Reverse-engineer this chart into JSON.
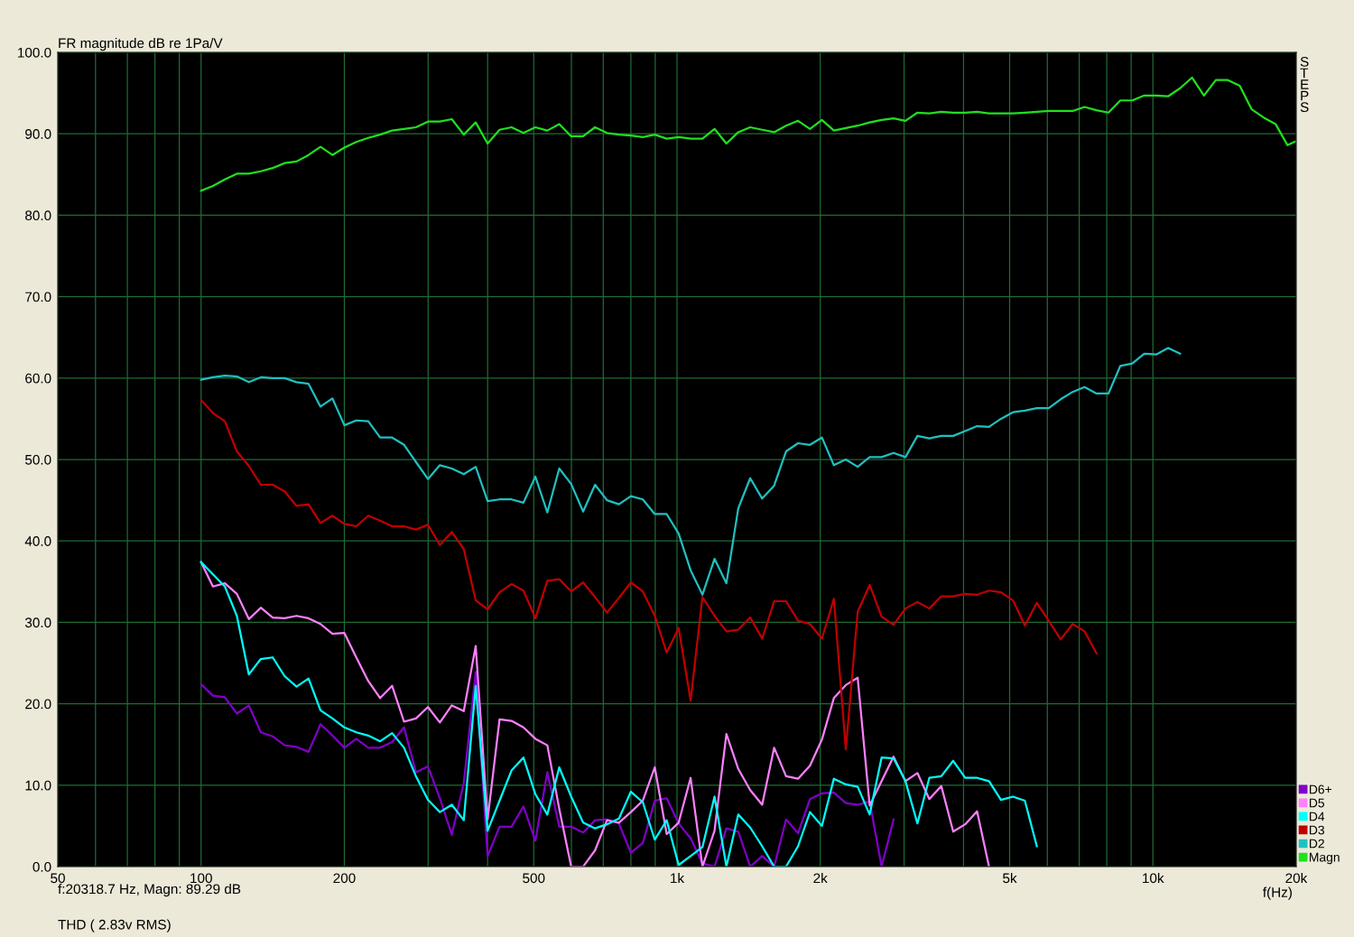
{
  "chart_data": {
    "type": "line",
    "ylabel": "FR magnitude dB re 1Pa/V",
    "xlabel": "f(Hz)",
    "annotations": [
      "STEPS",
      "f:20318.7 Hz, Magn: 89.29 dB",
      "THD ( 2.83v RMS)"
    ],
    "x": [
      100,
      105.9,
      112.2,
      118.9,
      126,
      133.5,
      141.4,
      149.8,
      158.7,
      168.2,
      178.2,
      188.8,
      200,
      211.9,
      224.5,
      237.8,
      252,
      267,
      282.8,
      299.7,
      317.5,
      336.4,
      356.4,
      377.6,
      400,
      423.8,
      449,
      475.7,
      504,
      534,
      565.7,
      599.3,
      635,
      672.7,
      712.7,
      755.1,
      800,
      847.6,
      898,
      951.4,
      1008,
      1068,
      1131,
      1199,
      1270,
      1345,
      1425,
      1510,
      1600,
      1695,
      1796,
      1903,
      2016,
      2136,
      2263,
      2397,
      2540,
      2691,
      2851,
      3020,
      3200,
      3390,
      3592,
      3805,
      4032,
      4271,
      4525,
      4795,
      5080,
      5382,
      5702,
      6041,
      6400,
      6781,
      7184,
      7611,
      8063,
      8543,
      9051,
      9589,
      10159,
      10763,
      11404,
      12082,
      12800,
      13561,
      14368,
      15222,
      16127,
      17086,
      18102,
      19178,
      20000
    ],
    "series": [
      {
        "name": "D6+",
        "color": "#8000c8",
        "values": [
          22.4,
          21.0,
          20.8,
          18.8,
          19.8,
          16.5,
          16.0,
          14.9,
          14.7,
          14.1,
          17.5,
          16.1,
          14.6,
          15.7,
          14.6,
          14.6,
          15.3,
          17.1,
          11.6,
          12.3,
          8.4,
          3.9,
          10.3,
          23.9,
          1.3,
          4.9,
          4.9,
          7.4,
          3.2,
          11.6,
          4.9,
          4.9,
          4.2,
          5.7,
          5.8,
          5.3,
          1.7,
          2.9,
          8.1,
          8.4,
          5.3,
          3.5,
          0.4,
          0,
          4.7,
          4.3,
          0,
          1.3,
          0,
          5.8,
          4.1,
          8.3,
          9.0,
          9.1,
          7.8,
          7.6,
          8.0,
          0,
          5.8,
          null,
          null,
          null,
          null,
          null,
          null,
          null,
          null,
          null,
          null,
          null,
          null,
          null,
          null,
          null,
          null,
          null,
          null,
          null,
          null,
          null,
          null,
          null,
          null,
          null,
          null,
          null,
          null,
          null,
          null,
          null,
          null,
          null,
          null
        ]
      },
      {
        "name": "D5",
        "color": "#ff80ff",
        "values": [
          37.4,
          34.4,
          34.8,
          33.5,
          30.4,
          31.8,
          30.6,
          30.5,
          30.8,
          30.5,
          29.8,
          28.6,
          28.7,
          25.7,
          22.8,
          20.7,
          22.2,
          17.8,
          18.2,
          19.6,
          17.7,
          19.8,
          19.1,
          27.1,
          5.8,
          18.1,
          17.9,
          17.1,
          15.7,
          14.9,
          7.1,
          0,
          0,
          2.0,
          5.7,
          5.4,
          6.7,
          8.1,
          12.2,
          4.0,
          5.4,
          10.9,
          0,
          4.4,
          16.3,
          12.0,
          9.4,
          7.6,
          14.6,
          11.1,
          10.8,
          12.4,
          15.6,
          20.7,
          22.3,
          23.2,
          7.5,
          10.5,
          13.5,
          10.5,
          11.5,
          8.3,
          9.9,
          4.3,
          5.2,
          6.8,
          0,
          null,
          null,
          null,
          null,
          null,
          null,
          null,
          null,
          null,
          null,
          null,
          null,
          null,
          null,
          null,
          null,
          null,
          null,
          null,
          null,
          null,
          null,
          null,
          null,
          null,
          null
        ]
      },
      {
        "name": "D4",
        "color": "#00ffff",
        "values": [
          37.4,
          35.9,
          34.4,
          30.8,
          23.6,
          25.5,
          25.7,
          23.4,
          22.1,
          23.1,
          19.2,
          18.2,
          17.1,
          16.5,
          16.1,
          15.4,
          16.4,
          14.6,
          11.1,
          8.2,
          6.7,
          7.6,
          5.7,
          22.2,
          4.4,
          8.1,
          11.8,
          13.4,
          8.9,
          6.4,
          12.2,
          8.6,
          5.4,
          4.7,
          5.2,
          5.9,
          9.2,
          7.9,
          3.3,
          5.7,
          0.2,
          1.3,
          2.4,
          8.6,
          0,
          6.4,
          4.8,
          2.5,
          0,
          0,
          2.5,
          6.7,
          5.0,
          10.8,
          10.1,
          9.8,
          6.4,
          13.4,
          13.3,
          10.5,
          5.3,
          10.9,
          11.1,
          13.0,
          10.9,
          10.9,
          10.5,
          8.2,
          8.6,
          8.1,
          2.5,
          null,
          null,
          null,
          null,
          null,
          null,
          null,
          null,
          null,
          null,
          null,
          null,
          null,
          null,
          null,
          null,
          null,
          null,
          null,
          null,
          null,
          null
        ]
      },
      {
        "name": "D3",
        "color": "#c00000",
        "values": [
          57.3,
          55.7,
          54.7,
          51.0,
          49.2,
          46.9,
          46.9,
          46.1,
          44.3,
          44.5,
          42.2,
          43.1,
          42.1,
          41.8,
          43.1,
          42.5,
          41.8,
          41.8,
          41.4,
          42.0,
          39.5,
          41.1,
          39.0,
          32.7,
          31.6,
          33.7,
          34.7,
          33.9,
          30.5,
          35.1,
          35.3,
          33.8,
          34.9,
          33.1,
          31.2,
          33.0,
          34.9,
          33.8,
          30.8,
          26.3,
          29.3,
          20.4,
          33.1,
          30.8,
          28.9,
          29.1,
          30.6,
          28.0,
          32.6,
          32.6,
          30.2,
          29.8,
          28.0,
          32.9,
          14.4,
          31.3,
          34.6,
          30.7,
          29.7,
          31.7,
          32.5,
          31.7,
          33.2,
          33.2,
          33.5,
          33.4,
          33.9,
          33.7,
          32.7,
          29.6,
          32.4,
          30.2,
          27.9,
          29.8,
          28.9,
          26.2,
          null,
          null,
          null,
          null,
          null,
          null,
          null,
          null,
          null,
          null,
          null,
          null,
          null,
          null,
          null,
          null,
          null
        ]
      },
      {
        "name": "D2",
        "color": "#20c0c0",
        "values": [
          59.8,
          60.1,
          60.3,
          60.2,
          59.5,
          60.1,
          60.0,
          60.0,
          59.5,
          59.3,
          56.5,
          57.5,
          54.2,
          54.8,
          54.7,
          52.7,
          52.7,
          51.8,
          49.7,
          47.6,
          49.3,
          48.9,
          48.2,
          49.1,
          44.9,
          45.1,
          45.1,
          44.7,
          47.9,
          43.5,
          48.9,
          47.0,
          43.6,
          46.9,
          45.0,
          44.5,
          45.5,
          45.1,
          43.3,
          43.3,
          40.9,
          36.4,
          33.4,
          37.8,
          34.8,
          44.0,
          47.7,
          45.2,
          46.8,
          51.0,
          52.0,
          51.8,
          52.7,
          49.3,
          50.0,
          49.1,
          50.3,
          50.3,
          50.8,
          50.3,
          52.9,
          52.6,
          52.9,
          52.9,
          53.5,
          54.1,
          54.0,
          55.0,
          55.8,
          56.0,
          56.3,
          56.3,
          57.4,
          58.3,
          58.9,
          58.1,
          58.1,
          61.5,
          61.8,
          63.0,
          62.9,
          63.7,
          63.0,
          null,
          null,
          null,
          null,
          null,
          null,
          null,
          null,
          null,
          null
        ]
      },
      {
        "name": "Magn",
        "color": "#20e020",
        "values": [
          83.0,
          83.6,
          84.4,
          85.1,
          85.1,
          85.4,
          85.8,
          86.4,
          86.6,
          87.4,
          88.4,
          87.4,
          88.3,
          89.0,
          89.5,
          89.9,
          90.4,
          90.6,
          90.8,
          91.5,
          91.5,
          91.8,
          89.9,
          91.4,
          88.8,
          90.5,
          90.8,
          90.1,
          90.8,
          90.4,
          91.2,
          89.7,
          89.7,
          90.8,
          90.1,
          89.9,
          89.8,
          89.6,
          89.9,
          89.4,
          89.6,
          89.4,
          89.4,
          90.6,
          88.8,
          90.2,
          90.8,
          90.5,
          90.2,
          91.0,
          91.6,
          90.6,
          91.7,
          90.4,
          90.7,
          91.0,
          91.4,
          91.7,
          91.9,
          91.6,
          92.6,
          92.5,
          92.7,
          92.6,
          92.6,
          92.7,
          92.5,
          92.5,
          92.5,
          92.6,
          92.7,
          92.8,
          92.8,
          92.8,
          93.3,
          92.9,
          92.6,
          94.1,
          94.1,
          94.7,
          94.7,
          94.6,
          95.6,
          96.9,
          94.7,
          96.6,
          96.6,
          95.9,
          93.0,
          92.0,
          91.2,
          88.6,
          89.1
        ]
      }
    ],
    "log": "x",
    "xlim": [
      50,
      20000
    ],
    "ylim": [
      0,
      100
    ],
    "xticks": [
      {
        "value": 50,
        "label": "50"
      },
      {
        "value": 60,
        "label": null
      },
      {
        "value": 70,
        "label": null
      },
      {
        "value": 80,
        "label": null
      },
      {
        "value": 90,
        "label": null
      },
      {
        "value": 100,
        "label": "100"
      },
      {
        "value": 200,
        "label": "200"
      },
      {
        "value": 300,
        "label": null
      },
      {
        "value": 400,
        "label": null
      },
      {
        "value": 500,
        "label": "500"
      },
      {
        "value": 600,
        "label": null
      },
      {
        "value": 700,
        "label": null
      },
      {
        "value": 800,
        "label": null
      },
      {
        "value": 900,
        "label": null
      },
      {
        "value": 1000,
        "label": "1k"
      },
      {
        "value": 2000,
        "label": "2k"
      },
      {
        "value": 3000,
        "label": null
      },
      {
        "value": 4000,
        "label": null
      },
      {
        "value": 5000,
        "label": "5k"
      },
      {
        "value": 6000,
        "label": null
      },
      {
        "value": 7000,
        "label": null
      },
      {
        "value": 8000,
        "label": null
      },
      {
        "value": 9000,
        "label": null
      },
      {
        "value": 10000,
        "label": "10k"
      },
      {
        "value": 20000,
        "label": "20k"
      }
    ],
    "yticks": [
      {
        "value": 0,
        "label": "0.0"
      },
      {
        "value": 10,
        "label": "10.0"
      },
      {
        "value": 20,
        "label": "20.0"
      },
      {
        "value": 30,
        "label": "30.0"
      },
      {
        "value": 40,
        "label": "40.0"
      },
      {
        "value": 50,
        "label": "50.0"
      },
      {
        "value": 60,
        "label": "60.0"
      },
      {
        "value": 70,
        "label": "70.0"
      },
      {
        "value": 80,
        "label": "80.0"
      },
      {
        "value": 90,
        "label": "90.0"
      },
      {
        "value": 100,
        "label": "100.0"
      }
    ],
    "grid": true,
    "legend": "bottom right",
    "marker": "none",
    "line_style": "solid"
  }
}
